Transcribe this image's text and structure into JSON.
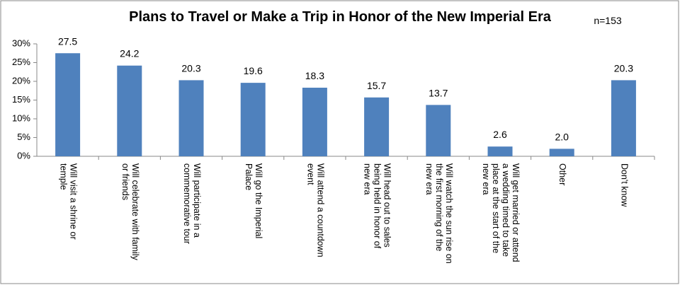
{
  "chart_data": {
    "type": "bar",
    "title": "Plans to Travel or Make a Trip in Honor of the New Imperial Era",
    "annotation": "n=153",
    "categories": [
      "Will visit a shrine or temple",
      "Will celebrate with family or friends",
      "Will participate in a commemorative tour",
      "Will go the Imperial Palace",
      "Will attend a countdown event",
      "Will head out to sales being held in honor of new era",
      "Will watch the sun rise on the first morning of the new era",
      "Will get married or attend a wedding timed to take place at the start of the new era",
      "Other",
      "Don't know"
    ],
    "values": [
      27.5,
      24.2,
      20.3,
      19.6,
      18.3,
      15.7,
      13.7,
      2.6,
      2.0,
      20.3
    ],
    "value_labels": [
      "27.5",
      "24.2",
      "20.3",
      "19.6",
      "18.3",
      "15.7",
      "13.7",
      "2.6",
      "2.0",
      "20.3"
    ],
    "color": "#4f81bd",
    "ylim": [
      0,
      30
    ],
    "yticks": [
      {
        "value": 0,
        "label": "0%"
      },
      {
        "value": 5,
        "label": "5%"
      },
      {
        "value": 10,
        "label": "10%"
      },
      {
        "value": 15,
        "label": "15%"
      },
      {
        "value": 20,
        "label": "20%"
      },
      {
        "value": 25,
        "label": "25%"
      },
      {
        "value": 30,
        "label": "30%"
      }
    ],
    "grid": false
  }
}
